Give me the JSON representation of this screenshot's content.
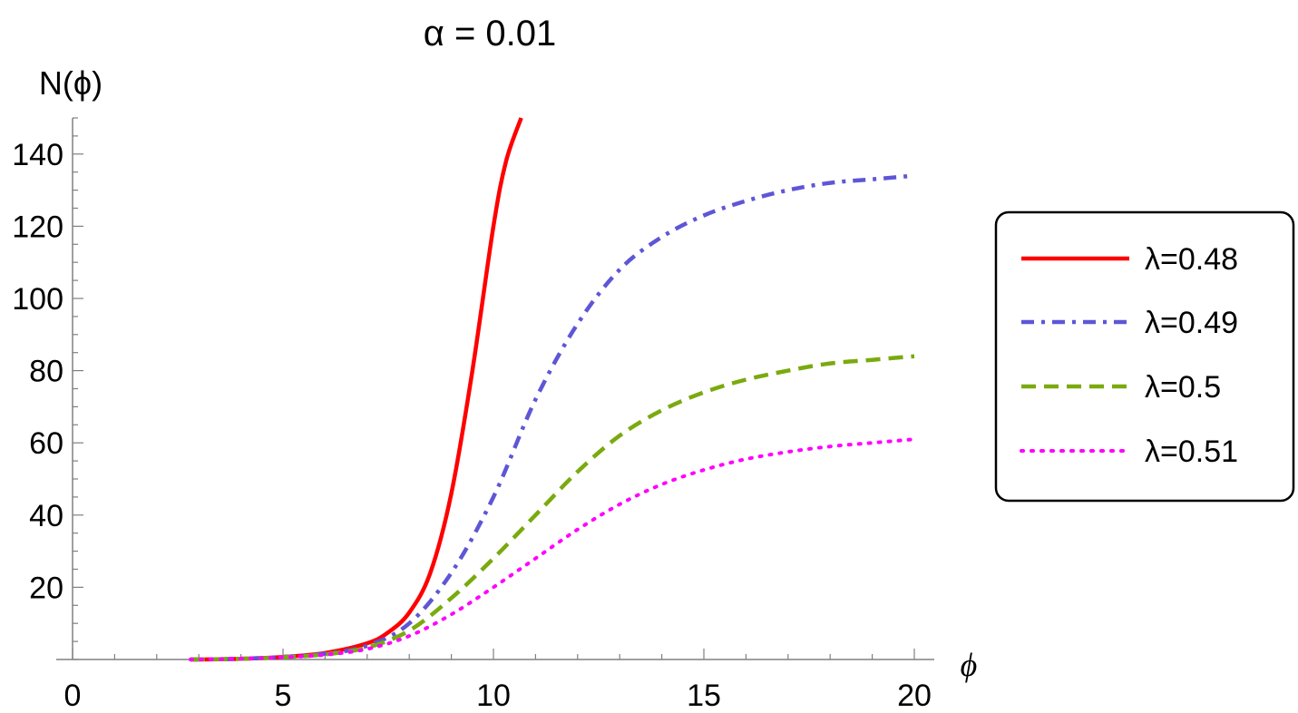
{
  "chart_data": {
    "type": "line",
    "title": "α = 0.01",
    "xlabel": "ϕ",
    "ylabel": "N(ϕ)",
    "xlim": [
      0,
      20
    ],
    "ylim": [
      0,
      150
    ],
    "xticks": [
      0,
      5,
      10,
      15,
      20
    ],
    "yticks": [
      20,
      40,
      60,
      80,
      100,
      120,
      140
    ],
    "legend_position": "right",
    "grid": false,
    "series": [
      {
        "name": "λ=0.48",
        "color": "#ff0000",
        "style": "solid",
        "x": [
          2.8,
          4,
          5,
          6,
          7,
          7.5,
          8,
          8.5,
          9,
          9.5,
          10,
          10.3,
          10.66
        ],
        "y": [
          0,
          0.2,
          0.7,
          1.8,
          4.5,
          7.5,
          13,
          24,
          46,
          80,
          120,
          138,
          150
        ]
      },
      {
        "name": "λ=0.49",
        "color": "#5e56d6",
        "style": "dashdot",
        "x": [
          2.8,
          4,
          5,
          6,
          7,
          8,
          9,
          10,
          11,
          12,
          13,
          14,
          15,
          16,
          17,
          18,
          19,
          20
        ],
        "y": [
          0,
          0.2,
          0.7,
          1.6,
          3.8,
          10,
          24,
          45,
          72,
          93,
          108,
          117,
          123,
          127,
          130,
          132,
          133,
          134
        ]
      },
      {
        "name": "λ=0.5",
        "color": "#7aaa0e",
        "style": "dashed",
        "x": [
          2.8,
          4,
          5,
          6,
          7,
          8,
          9,
          10,
          11,
          12,
          13,
          14,
          15,
          16,
          17,
          18,
          19,
          20
        ],
        "y": [
          0,
          0.2,
          0.6,
          1.4,
          3.3,
          8,
          17,
          28,
          40,
          52,
          62,
          69,
          74,
          77.5,
          80,
          82,
          83,
          84
        ]
      },
      {
        "name": "λ=0.51",
        "color": "#ff00ff",
        "style": "dotted",
        "x": [
          2.8,
          4,
          5,
          6,
          7,
          8,
          9,
          10,
          11,
          12,
          13,
          14,
          15,
          16,
          17,
          18,
          19,
          20
        ],
        "y": [
          0,
          0.2,
          0.6,
          1.3,
          2.9,
          6.5,
          12.5,
          20,
          28,
          36,
          43,
          48.5,
          52.5,
          55.5,
          57.5,
          59,
          60,
          61
        ]
      }
    ]
  }
}
